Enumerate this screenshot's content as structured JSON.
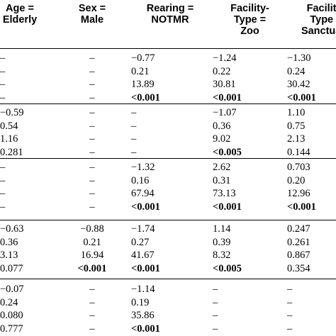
{
  "header": {
    "age": [
      "Age =",
      "Elderly"
    ],
    "sex": [
      "Sex =",
      "Male"
    ],
    "rearing": [
      "Rearing =",
      "NOTMR"
    ],
    "zoo": [
      "Facility-",
      "Type =",
      "Zoo"
    ],
    "sanctuary": [
      "Facility-",
      "Type =",
      "Sanctuary"
    ]
  },
  "groups": [
    {
      "rows": [
        [
          "–",
          "–",
          "−0.77",
          "−1.24",
          "−1.30"
        ],
        [
          "–",
          "–",
          "0.21",
          "0.22",
          "0.24"
        ],
        [
          "–",
          "–",
          "13.89",
          "30.81",
          "30.42"
        ],
        [
          "–",
          "–",
          "<0.001",
          "<0.001",
          "<0.001"
        ]
      ]
    },
    {
      "rows": [
        [
          "−0.59",
          "–",
          "–",
          "−1.07",
          "1.10"
        ],
        [
          "0.54",
          "–",
          "–",
          "0.36",
          "0.75"
        ],
        [
          "1.16",
          "–",
          "–",
          "9.02",
          "2.13"
        ],
        [
          "0.281",
          "–",
          "–",
          "<0.005",
          "0.144"
        ]
      ]
    },
    {
      "rows": [
        [
          "–",
          "–",
          "−1.32",
          "2.62",
          "0.703"
        ],
        [
          "–",
          "–",
          "0.16",
          "0.31",
          "0.20"
        ],
        [
          "–",
          "–",
          "67.94",
          "73.13",
          "12.96"
        ],
        [
          "–",
          "–",
          "<0.001",
          "<0.001",
          "<0.001"
        ]
      ]
    },
    {
      "rows": [
        [
          "−0.63",
          "−0.88",
          "−1.74",
          "1.14",
          "0.247"
        ],
        [
          "0.36",
          "0.21",
          "0.27",
          "0.39",
          "0.261"
        ],
        [
          "3.13",
          "16.94",
          "41.67",
          "8.32",
          "0.867"
        ],
        [
          "0.077",
          "<0.001",
          "<0.001",
          "<0.005",
          "0.354"
        ]
      ]
    },
    {
      "rows": [
        [
          "−0.07",
          "–",
          "−1.14",
          "–",
          "–"
        ],
        [
          "0.24",
          "–",
          "0.19",
          "–",
          "–"
        ],
        [
          "0.080",
          "–",
          "35.86",
          "–",
          "–"
        ],
        [
          "0.777",
          "–",
          "<0.001",
          "–",
          "–"
        ]
      ]
    }
  ]
}
